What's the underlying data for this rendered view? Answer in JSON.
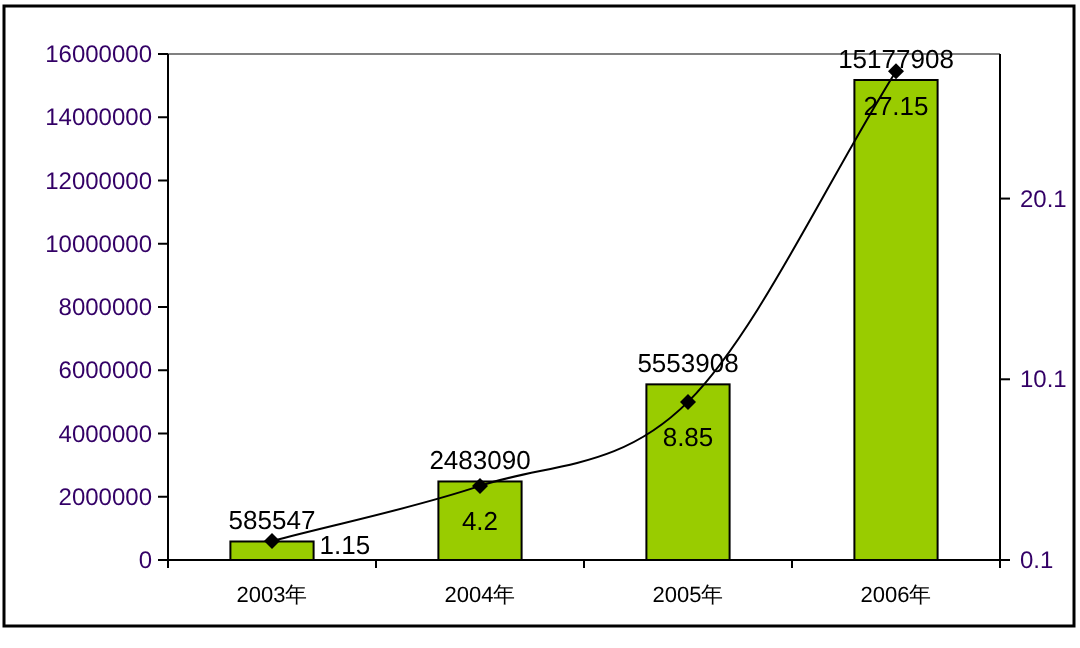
{
  "chart_data": {
    "type": "bar",
    "categories": [
      "2003年",
      "2004年",
      "2005年",
      "2006年"
    ],
    "series": [
      {
        "color": "#99cc00",
        "values": [
          585547,
          2483090,
          5553908,
          15177908
        ]
      },
      {
        "type": "line",
        "color": "#000000",
        "axis": "y2",
        "marker": "diamond",
        "values": [
          1.15,
          4.2,
          8.85,
          27.15
        ]
      }
    ],
    "ylim": [
      0,
      16000000
    ],
    "yticks": [
      0,
      2000000,
      4000000,
      6000000,
      8000000,
      10000000,
      12000000,
      14000000,
      16000000
    ],
    "y2lim": [
      0.1,
      28.1
    ],
    "y2ticks": [
      0.1,
      10.1,
      20.1
    ],
    "data_labels": true
  }
}
